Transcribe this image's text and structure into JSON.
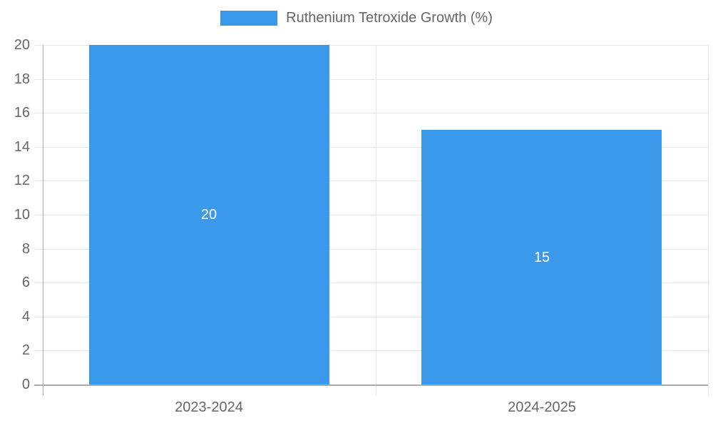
{
  "chart_data": {
    "type": "bar",
    "categories": [
      "2023-2024",
      "2024-2025"
    ],
    "series": [
      {
        "name": "Ruthenium Tetroxide Growth (%)",
        "values": [
          20,
          15
        ],
        "color": "#3B99EC"
      }
    ],
    "title": "",
    "xlabel": "",
    "ylabel": "",
    "ylim": [
      0,
      20
    ],
    "ytick_step": 2,
    "grid": true,
    "legend_position": "top",
    "value_labels": {
      "show": true,
      "color": "#FFFFFF",
      "position": "center",
      "values": [
        "20",
        "15"
      ]
    },
    "colors": {
      "grid": "#E6E6E6",
      "axis_border": "#ABABAB",
      "tick_label": "#666666",
      "legend_label": "#666666",
      "background": "#FFFFFF"
    }
  }
}
